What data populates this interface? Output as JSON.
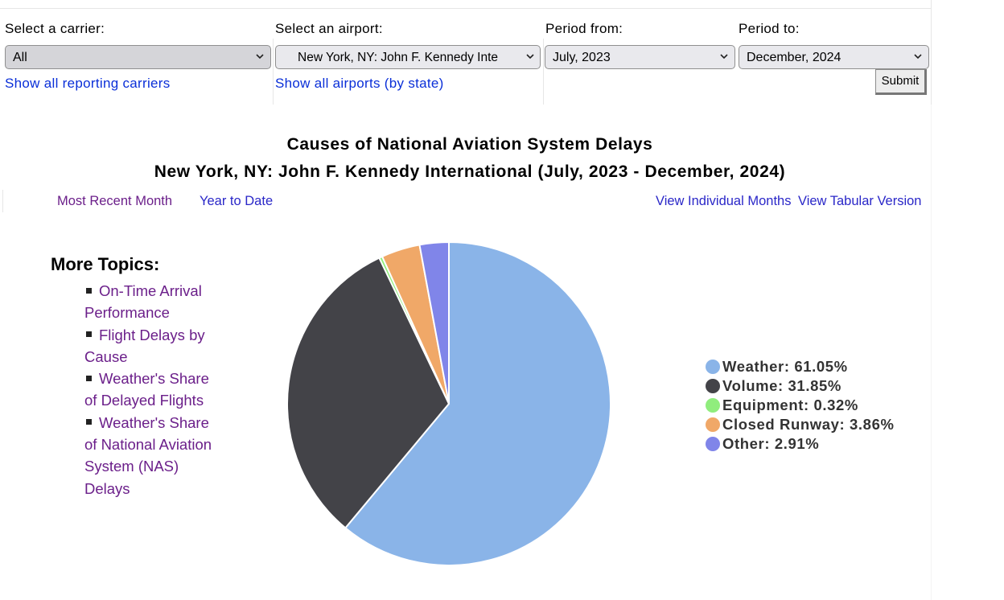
{
  "form": {
    "carrier": {
      "label": "Select a carrier:",
      "value": "All",
      "link": "Show all reporting carriers"
    },
    "airport": {
      "label": "Select an airport:",
      "value": "New York, NY: John F. Kennedy Inte",
      "link": "Show all airports (by state)"
    },
    "period_from": {
      "label": "Period from:",
      "value": "July, 2023"
    },
    "period_to": {
      "label": "Period to:",
      "value": "December, 2024"
    },
    "submit": "Submit"
  },
  "title": {
    "line1": "Causes of National Aviation System Delays",
    "line2": "New York, NY: John F. Kennedy International (July, 2023 - December, 2024)"
  },
  "nav": {
    "most_recent": "Most Recent Month",
    "year_to_date": "Year to Date",
    "individual_months": "View Individual Months",
    "tabular": "View Tabular Version"
  },
  "topics": {
    "heading": "More Topics:",
    "items": [
      "On-Time Arrival Performance",
      "Flight Delays by Cause",
      "Weather's Share of Delayed Flights",
      "Weather's Share of National Aviation System (NAS) Delays"
    ]
  },
  "chart_data": {
    "type": "pie",
    "series": [
      {
        "name": "Weather",
        "value": 61.05,
        "color": "#8ab4e8",
        "label": "Weather: 61.05%"
      },
      {
        "name": "Volume",
        "value": 31.85,
        "color": "#434348",
        "label": "Volume: 31.85%"
      },
      {
        "name": "Equipment",
        "value": 0.32,
        "color": "#90ed7d",
        "label": "Equipment: 0.32%"
      },
      {
        "name": "Closed Runway",
        "value": 3.86,
        "color": "#f0a868",
        "label": "Closed Runway: 3.86%"
      },
      {
        "name": "Other",
        "value": 2.91,
        "color": "#8085e9",
        "label": "Other: 2.91%"
      }
    ],
    "legend_position": "right"
  }
}
